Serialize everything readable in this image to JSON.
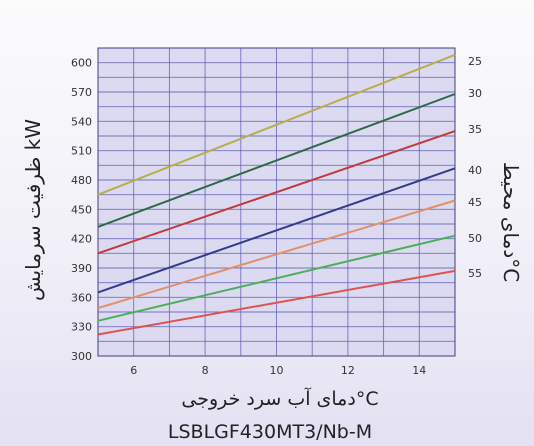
{
  "chart_data": {
    "type": "line",
    "title": "LSBLGF430MT3/Nb-M",
    "xlabel": "دمای آب سرد خروجی°C",
    "ylabel": "ظرفیت سرمایش kW",
    "right_label": "دمای محیط°C",
    "xlim": [
      5,
      15
    ],
    "ylim": [
      300,
      615
    ],
    "x_ticks": [
      "6",
      "8",
      "10",
      "12",
      "14"
    ],
    "y_ticks": [
      "300",
      "330",
      "360",
      "390",
      "420",
      "450",
      "480",
      "510",
      "540",
      "570",
      "600"
    ],
    "grid": true,
    "series": [
      {
        "name": "25",
        "color": "#b9ad4a",
        "x": [
          5,
          15
        ],
        "y": [
          465,
          608
        ]
      },
      {
        "name": "30",
        "color": "#2e6a48",
        "x": [
          5,
          15
        ],
        "y": [
          432,
          568
        ]
      },
      {
        "name": "35",
        "color": "#c23a3a",
        "x": [
          5,
          15
        ],
        "y": [
          405,
          530
        ]
      },
      {
        "name": "40",
        "color": "#323c8c",
        "x": [
          5,
          15
        ],
        "y": [
          365,
          492
        ]
      },
      {
        "name": "45",
        "color": "#e0906a",
        "x": [
          5,
          15
        ],
        "y": [
          349,
          459
        ]
      },
      {
        "name": "50",
        "color": "#4cae5a",
        "x": [
          5,
          15
        ],
        "y": [
          336,
          423
        ]
      },
      {
        "name": "55",
        "color": "#e0524e",
        "x": [
          5,
          15
        ],
        "y": [
          322,
          387
        ]
      }
    ]
  }
}
